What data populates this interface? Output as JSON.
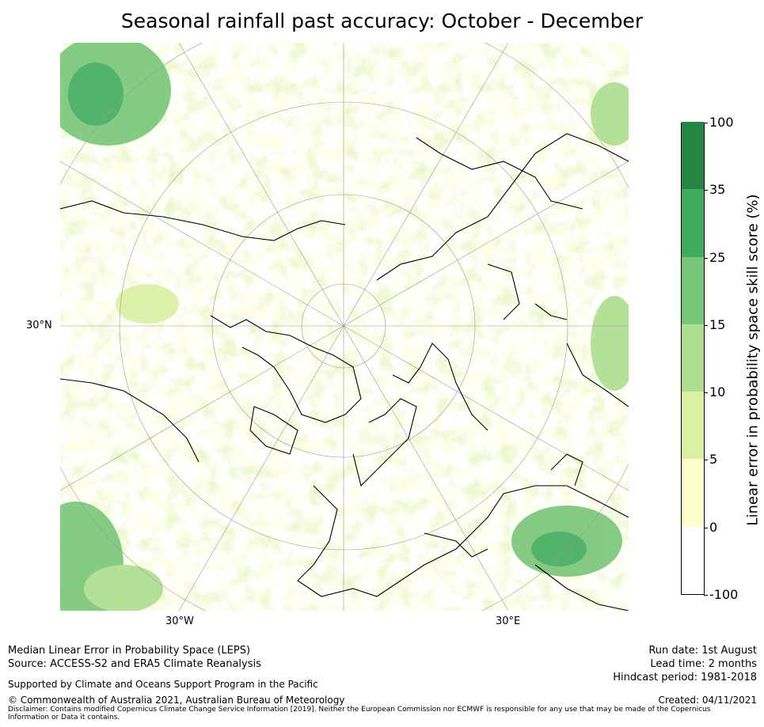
{
  "title": "Seasonal rainfall past accuracy: October - December",
  "map": {
    "projection": "north-polar-stereographic",
    "graticule_labels": {
      "lat_30n": "30°N",
      "lon_30w": "30°W",
      "lon_30e": "30°E"
    }
  },
  "colorbar": {
    "label": "Linear error in probability space skill score (%)",
    "levels": [
      {
        "from": "-100",
        "to": "0",
        "color": "#ffffff"
      },
      {
        "from": "0",
        "to": "5",
        "color": "#ffffcc"
      },
      {
        "from": "5",
        "to": "10",
        "color": "#d9f0a3"
      },
      {
        "from": "10",
        "to": "15",
        "color": "#addd8e"
      },
      {
        "from": "15",
        "to": "25",
        "color": "#78c679"
      },
      {
        "from": "25",
        "to": "35",
        "color": "#41ab5d"
      },
      {
        "from": "35",
        "to": "100",
        "color": "#238443"
      }
    ],
    "tick_labels": [
      "-100",
      "0",
      "5",
      "10",
      "15",
      "25",
      "35",
      "100"
    ]
  },
  "footer": {
    "line1": "Median Linear Error in Probability Space (LEPS)",
    "line2": "Source: ACCESS-S2 and ERA5 Climate Reanalysis",
    "support": "Supported by Climate and Oceans Support Program in the Pacific",
    "copyright": "© Commonwealth of Australia 2021, Australian Bureau of Meteorology",
    "disclaimer": "Disclaimer: Contains modified Copernicus Climate Change Service Information [2019]. Neither the European Commission nor ECMWF is responsible for any use that may be made of the Copernicus Information or Data it contains.",
    "run_date": "Run date: 1st August",
    "lead_time": "Lead time: 2 months",
    "hindcast": "Hindcast period: 1981-2018",
    "created": "Created: 04/11/2021"
  }
}
